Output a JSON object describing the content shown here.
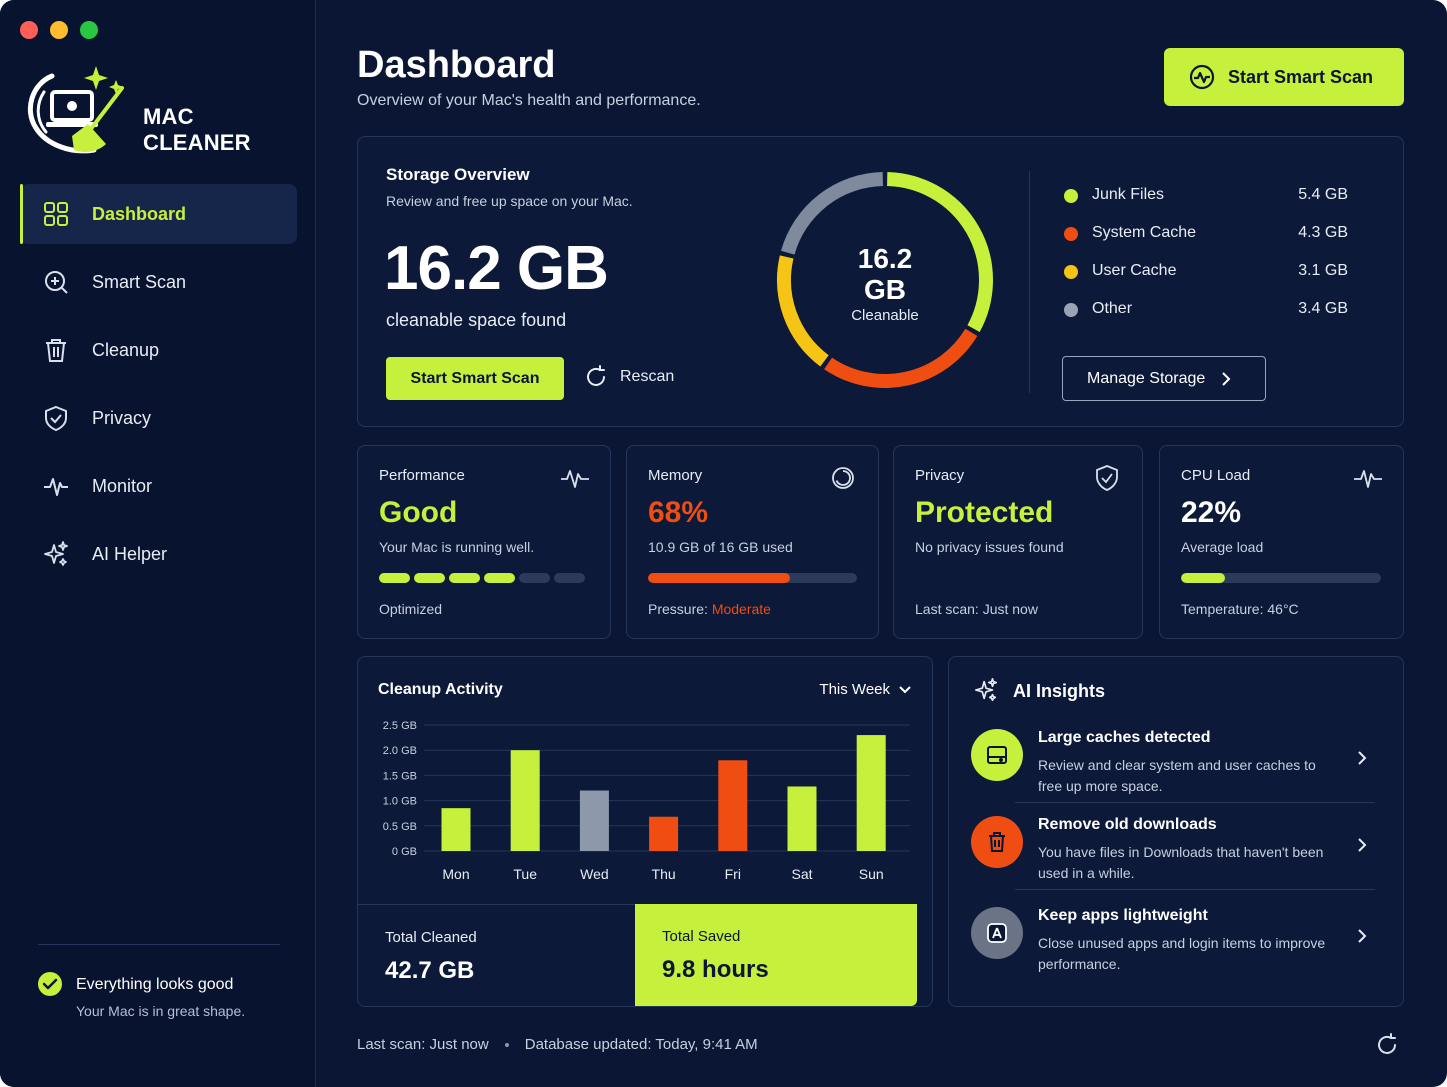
{
  "app": {
    "brand": "MAC CLEANER",
    "colors": {
      "accent": "#c6f03b",
      "orange": "#f04d12",
      "yellow": "#f5c414",
      "gray": "#8d99ab",
      "bg": "#0a1634"
    }
  },
  "sidebar": {
    "items": [
      {
        "label": "Dashboard",
        "icon": "grid-icon",
        "active": true
      },
      {
        "label": "Smart Scan",
        "icon": "scan-icon"
      },
      {
        "label": "Cleanup",
        "icon": "trash-icon"
      },
      {
        "label": "Privacy",
        "icon": "shield-icon"
      },
      {
        "label": "Monitor",
        "icon": "pulse-icon"
      },
      {
        "label": "AI Helper",
        "icon": "sparkle-icon"
      }
    ],
    "status": {
      "title": "Everything looks good",
      "subtitle": "Your Mac is in great shape."
    }
  },
  "header": {
    "title": "Dashboard",
    "subtitle": "Overview of your Mac's health and performance.",
    "scan_button": "Start Smart Scan"
  },
  "storage": {
    "title": "Storage Overview",
    "subtitle": "Review and free up space on your Mac.",
    "total": "16.2 GB",
    "total_caption": "cleanable space found",
    "scan_button": "Start Smart Scan",
    "rescan_button": "Rescan",
    "donut_value": "16.2",
    "donut_unit": "GB",
    "donut_label": "Cleanable",
    "manage_button": "Manage Storage",
    "legend": [
      {
        "name": "Junk Files",
        "value": "5.4 GB",
        "gb": 5.4,
        "color": "#c6f03b"
      },
      {
        "name": "System Cache",
        "value": "4.3 GB",
        "gb": 4.3,
        "color": "#f04d12"
      },
      {
        "name": "User Cache",
        "value": "3.1 GB",
        "gb": 3.1,
        "color": "#f5c414"
      },
      {
        "name": "Other",
        "value": "3.4 GB",
        "gb": 3.4,
        "color": "#7f8a9e"
      }
    ]
  },
  "metrics": {
    "performance": {
      "title": "Performance",
      "value": "Good",
      "subtitle": "Your Mac is running well.",
      "footer": "Optimized",
      "segments_on": 4,
      "segments_total": 6
    },
    "memory": {
      "title": "Memory",
      "value": "68%",
      "subtitle": "10.9 GB of 16 GB used",
      "footer_label": "Pressure:",
      "footer_value": "Moderate",
      "percent": 68
    },
    "privacy": {
      "title": "Privacy",
      "value": "Protected",
      "subtitle": "No privacy issues found",
      "footer": "Last scan: Just now"
    },
    "cpu": {
      "title": "CPU Load",
      "value": "22%",
      "subtitle": "Average load",
      "footer": "Temperature: 46°C",
      "percent": 22
    }
  },
  "activity": {
    "title": "Cleanup Activity",
    "range": "This Week",
    "total_cleaned_label": "Total Cleaned",
    "total_cleaned_value": "42.7 GB",
    "total_saved_label": "Total Saved",
    "total_saved_value": "9.8 hours"
  },
  "chart_data": {
    "type": "bar",
    "categories": [
      "Mon",
      "Tue",
      "Wed",
      "Thu",
      "Fri",
      "Sat",
      "Sun"
    ],
    "values": [
      0.85,
      2.0,
      1.2,
      0.68,
      1.8,
      1.28,
      2.3
    ],
    "colors": [
      "#c6f03b",
      "#c6f03b",
      "#8d99ab",
      "#f04d12",
      "#f04d12",
      "#c6f03b",
      "#c6f03b"
    ],
    "yticks": [
      "0 GB",
      "0.5 GB",
      "1.0 GB",
      "1.5 GB",
      "2.0 GB",
      "2.5 GB"
    ],
    "ylim": [
      0,
      2.5
    ],
    "grid": true
  },
  "insights": {
    "title": "AI Insights",
    "items": [
      {
        "title": "Large caches detected",
        "desc": "Review and clear system and user caches to free up more space.",
        "icon": "drive-icon"
      },
      {
        "title": "Remove old downloads",
        "desc": "You have files in Downloads that haven't been used in a while.",
        "icon": "trash-icon"
      },
      {
        "title": "Keep apps lightweight",
        "desc": "Close unused apps and login items to improve performance.",
        "icon": "app-store-icon"
      }
    ]
  },
  "footer": {
    "last_scan": "Last scan: Just now",
    "db_updated": "Database updated: Today, 9:41 AM"
  }
}
